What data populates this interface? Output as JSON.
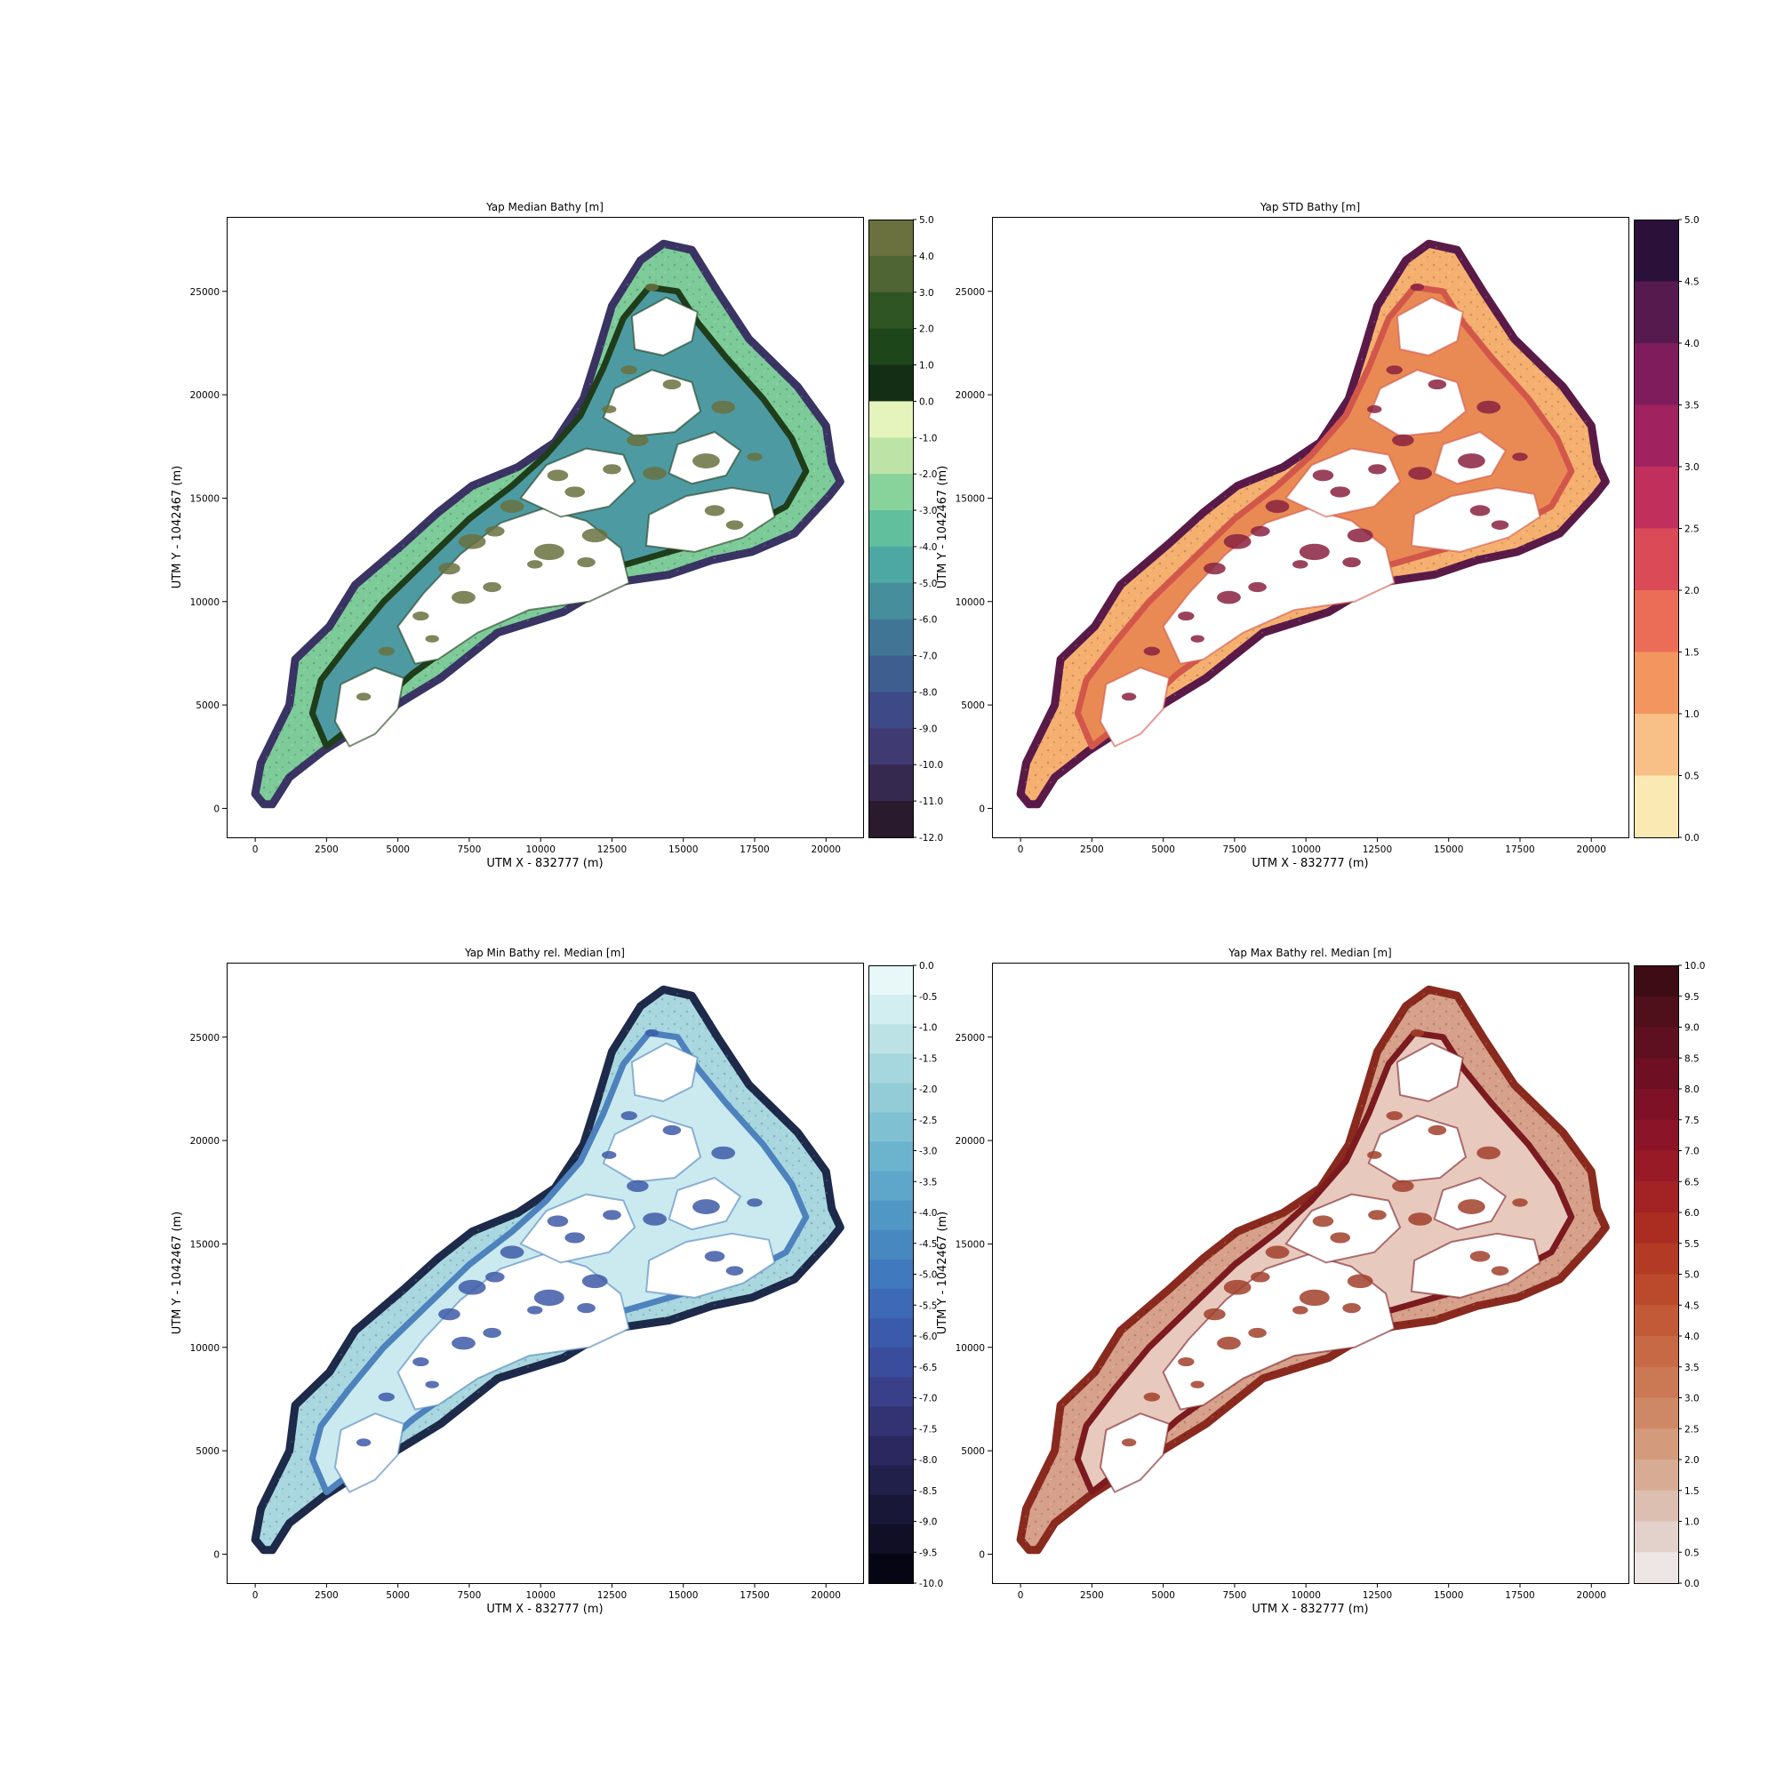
{
  "figure": {
    "x_label": "UTM X - 832777 (m)",
    "y_label": "UTM Y - 1042467 (m)",
    "x_ticks": [
      0,
      2500,
      5000,
      7500,
      10000,
      12500,
      15000,
      17500,
      20000
    ],
    "y_ticks": [
      0,
      5000,
      10000,
      15000,
      20000,
      25000
    ],
    "xlim": [
      -1000,
      21300
    ],
    "ylim": [
      -1400,
      28600
    ]
  },
  "panels": [
    {
      "title": "Yap Median Bathy [m]",
      "colorbar": {
        "ticks": [
          "5.0",
          "4.0",
          "3.0",
          "2.0",
          "1.0",
          "0.0",
          "-1.0",
          "-2.0",
          "-3.0",
          "-4.0",
          "-5.0",
          "-6.0",
          "-7.0",
          "-8.0",
          "-9.0",
          "-10.0",
          "-11.0",
          "-12.0"
        ],
        "colors": [
          "#6a713f",
          "#4f6533",
          "#2e5523",
          "#1d461b",
          "#142e16",
          "#e5f3bd",
          "#bde4a6",
          "#88d29c",
          "#61bf9e",
          "#4da7a2",
          "#468e9c",
          "#407595",
          "#3e5e90",
          "#3e4a88",
          "#3f3a72",
          "#36294f",
          "#2a1a2d"
        ]
      },
      "map_colors": {
        "edge": "#3a3464",
        "reef": "#7dcb99",
        "inner_ring": "#1f3d1a",
        "lagoon": "#4d9aa2",
        "land": "#ffffff",
        "patch": "#6a713f"
      }
    },
    {
      "title": "Yap STD Bathy [m]",
      "colorbar": {
        "ticks": [
          "5.0",
          "4.5",
          "4.0",
          "3.5",
          "3.0",
          "2.5",
          "2.0",
          "1.5",
          "1.0",
          "0.5",
          "0.0"
        ],
        "colors": [
          "#2b1139",
          "#571a4e",
          "#7f1d5c",
          "#a0225f",
          "#c12f5c",
          "#db4b57",
          "#eb6d57",
          "#f3955f",
          "#f8bf86",
          "#fbe9b3"
        ]
      },
      "map_colors": {
        "edge": "#5a1a48",
        "reef": "#f5b070",
        "inner_ring": "#d2574a",
        "lagoon": "#e98a55",
        "land": "#ffffff",
        "patch": "#8a2240"
      }
    },
    {
      "title": "Yap Min Bathy rel. Median [m]",
      "colorbar": {
        "ticks": [
          "0.0",
          "-0.5",
          "-1.0",
          "-1.5",
          "-2.0",
          "-2.5",
          "-3.0",
          "-3.5",
          "-4.0",
          "-4.5",
          "-5.0",
          "-5.5",
          "-6.0",
          "-6.5",
          "-7.0",
          "-7.5",
          "-8.0",
          "-8.5",
          "-9.0",
          "-9.5",
          "-10.0"
        ],
        "colors": [
          "#e8f8f9",
          "#d3eef0",
          "#bde2e6",
          "#a7d7de",
          "#93cbd7",
          "#7fc0d2",
          "#6cb3ce",
          "#5ea6ca",
          "#5197c5",
          "#4788c1",
          "#4079bd",
          "#3d69b6",
          "#3b5aab",
          "#3a4c9c",
          "#393f89",
          "#333373",
          "#2a285e",
          "#21204b",
          "#181738",
          "#100f26",
          "#050514"
        ]
      },
      "map_colors": {
        "edge": "#1d2a4a",
        "reef": "#a9d7e0",
        "inner_ring": "#4d82bd",
        "lagoon": "#cbeaf0",
        "land": "#ffffff",
        "patch": "#3e5aa7"
      }
    },
    {
      "title": "Yap Max Bathy rel. Median [m]",
      "colorbar": {
        "ticks": [
          "10.0",
          "9.5",
          "9.0",
          "8.5",
          "8.0",
          "7.5",
          "7.0",
          "6.5",
          "6.0",
          "5.5",
          "5.0",
          "4.5",
          "4.0",
          "3.5",
          "3.0",
          "2.5",
          "2.0",
          "1.5",
          "1.0",
          "0.5",
          "0.0"
        ],
        "colors": [
          "#3d0c15",
          "#4f0f1b",
          "#5e0f20",
          "#6e0f24",
          "#7e1126",
          "#8c1428",
          "#991a27",
          "#a32224",
          "#ab2d22",
          "#b33b25",
          "#bb4a2c",
          "#c25a37",
          "#c76944",
          "#cb7854",
          "#cf8865",
          "#d39a7b",
          "#d8ac94",
          "#dcbfb0",
          "#e3d2cb",
          "#ede6e4"
        ]
      },
      "map_colors": {
        "edge": "#8a2a1e",
        "reef": "#d7a08a",
        "inner_ring": "#7b1a1f",
        "lagoon": "#e7c9bd",
        "land": "#ffffff",
        "patch": "#a1402c"
      }
    }
  ]
}
